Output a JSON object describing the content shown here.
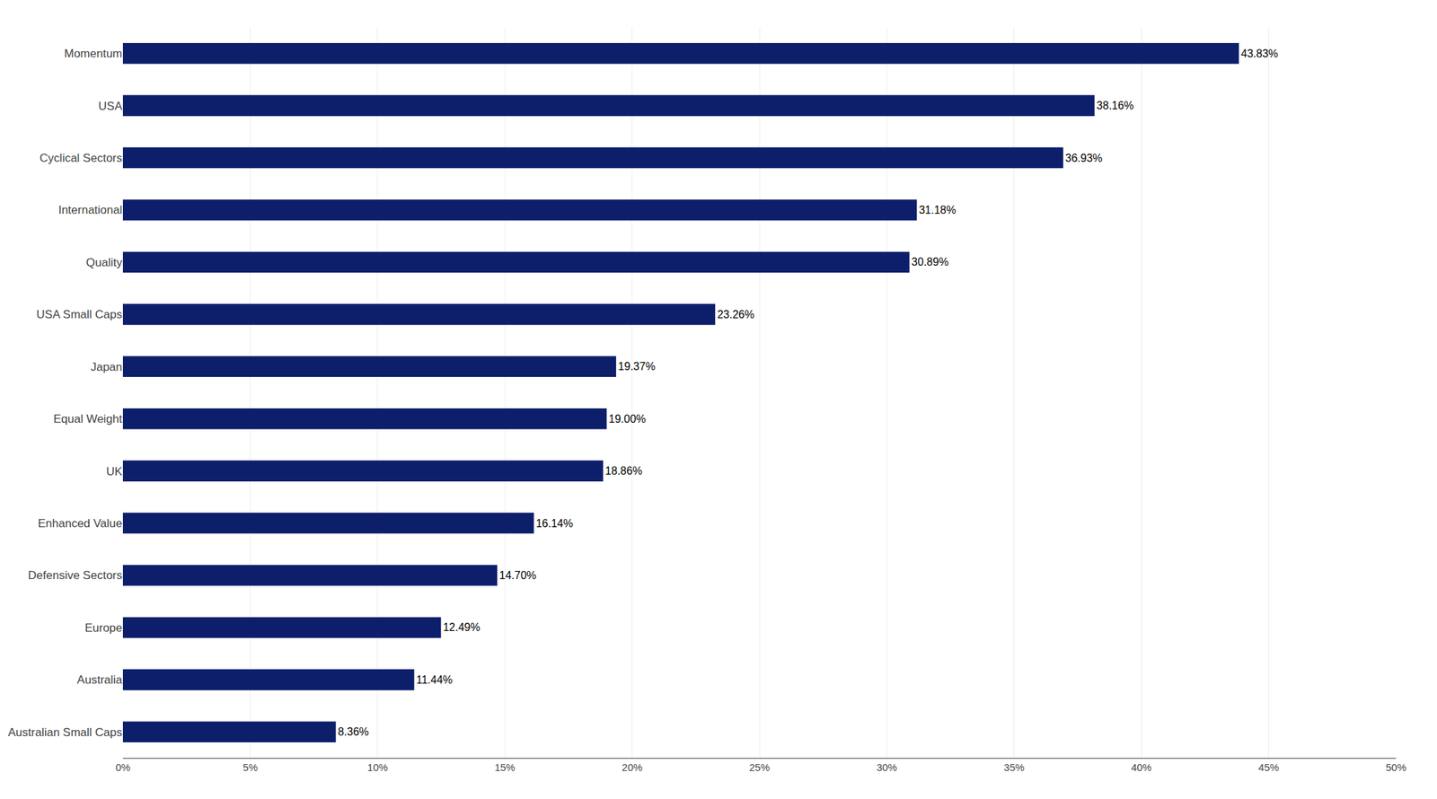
{
  "chart_data": {
    "type": "bar",
    "orientation": "horizontal",
    "categories": [
      "Australian Small Caps",
      "Australia",
      "Europe",
      "Defensive Sectors",
      "Enhanced Value",
      "UK",
      "Equal Weight",
      "Japan",
      "USA Small Caps",
      "Quality",
      "International",
      "Cyclical Sectors",
      "USA",
      "Momentum"
    ],
    "values": [
      8.36,
      11.44,
      12.49,
      14.7,
      16.14,
      18.86,
      19.0,
      19.37,
      23.26,
      30.89,
      31.18,
      36.93,
      38.16,
      43.83
    ],
    "value_labels": [
      "8.36%",
      "11.44%",
      "12.49%",
      "14.70%",
      "16.14%",
      "18.86%",
      "19.00%",
      "19.37%",
      "23.26%",
      "30.89%",
      "31.18%",
      "36.93%",
      "38.16%",
      "43.83%"
    ],
    "data_labels": true,
    "color": "#0d1f6b",
    "xlim": [
      0,
      50
    ],
    "xticks": [
      {
        "value": 0,
        "label": "0%"
      },
      {
        "value": 5,
        "label": "5%"
      },
      {
        "value": 10,
        "label": "10%"
      },
      {
        "value": 15,
        "label": "15%"
      },
      {
        "value": 20,
        "label": "20%"
      },
      {
        "value": 25,
        "label": "25%"
      },
      {
        "value": 30,
        "label": "30%"
      },
      {
        "value": 35,
        "label": "35%"
      },
      {
        "value": 40,
        "label": "40%"
      },
      {
        "value": 45,
        "label": "45%"
      },
      {
        "value": 50,
        "label": "50%"
      }
    ],
    "grid": true
  }
}
